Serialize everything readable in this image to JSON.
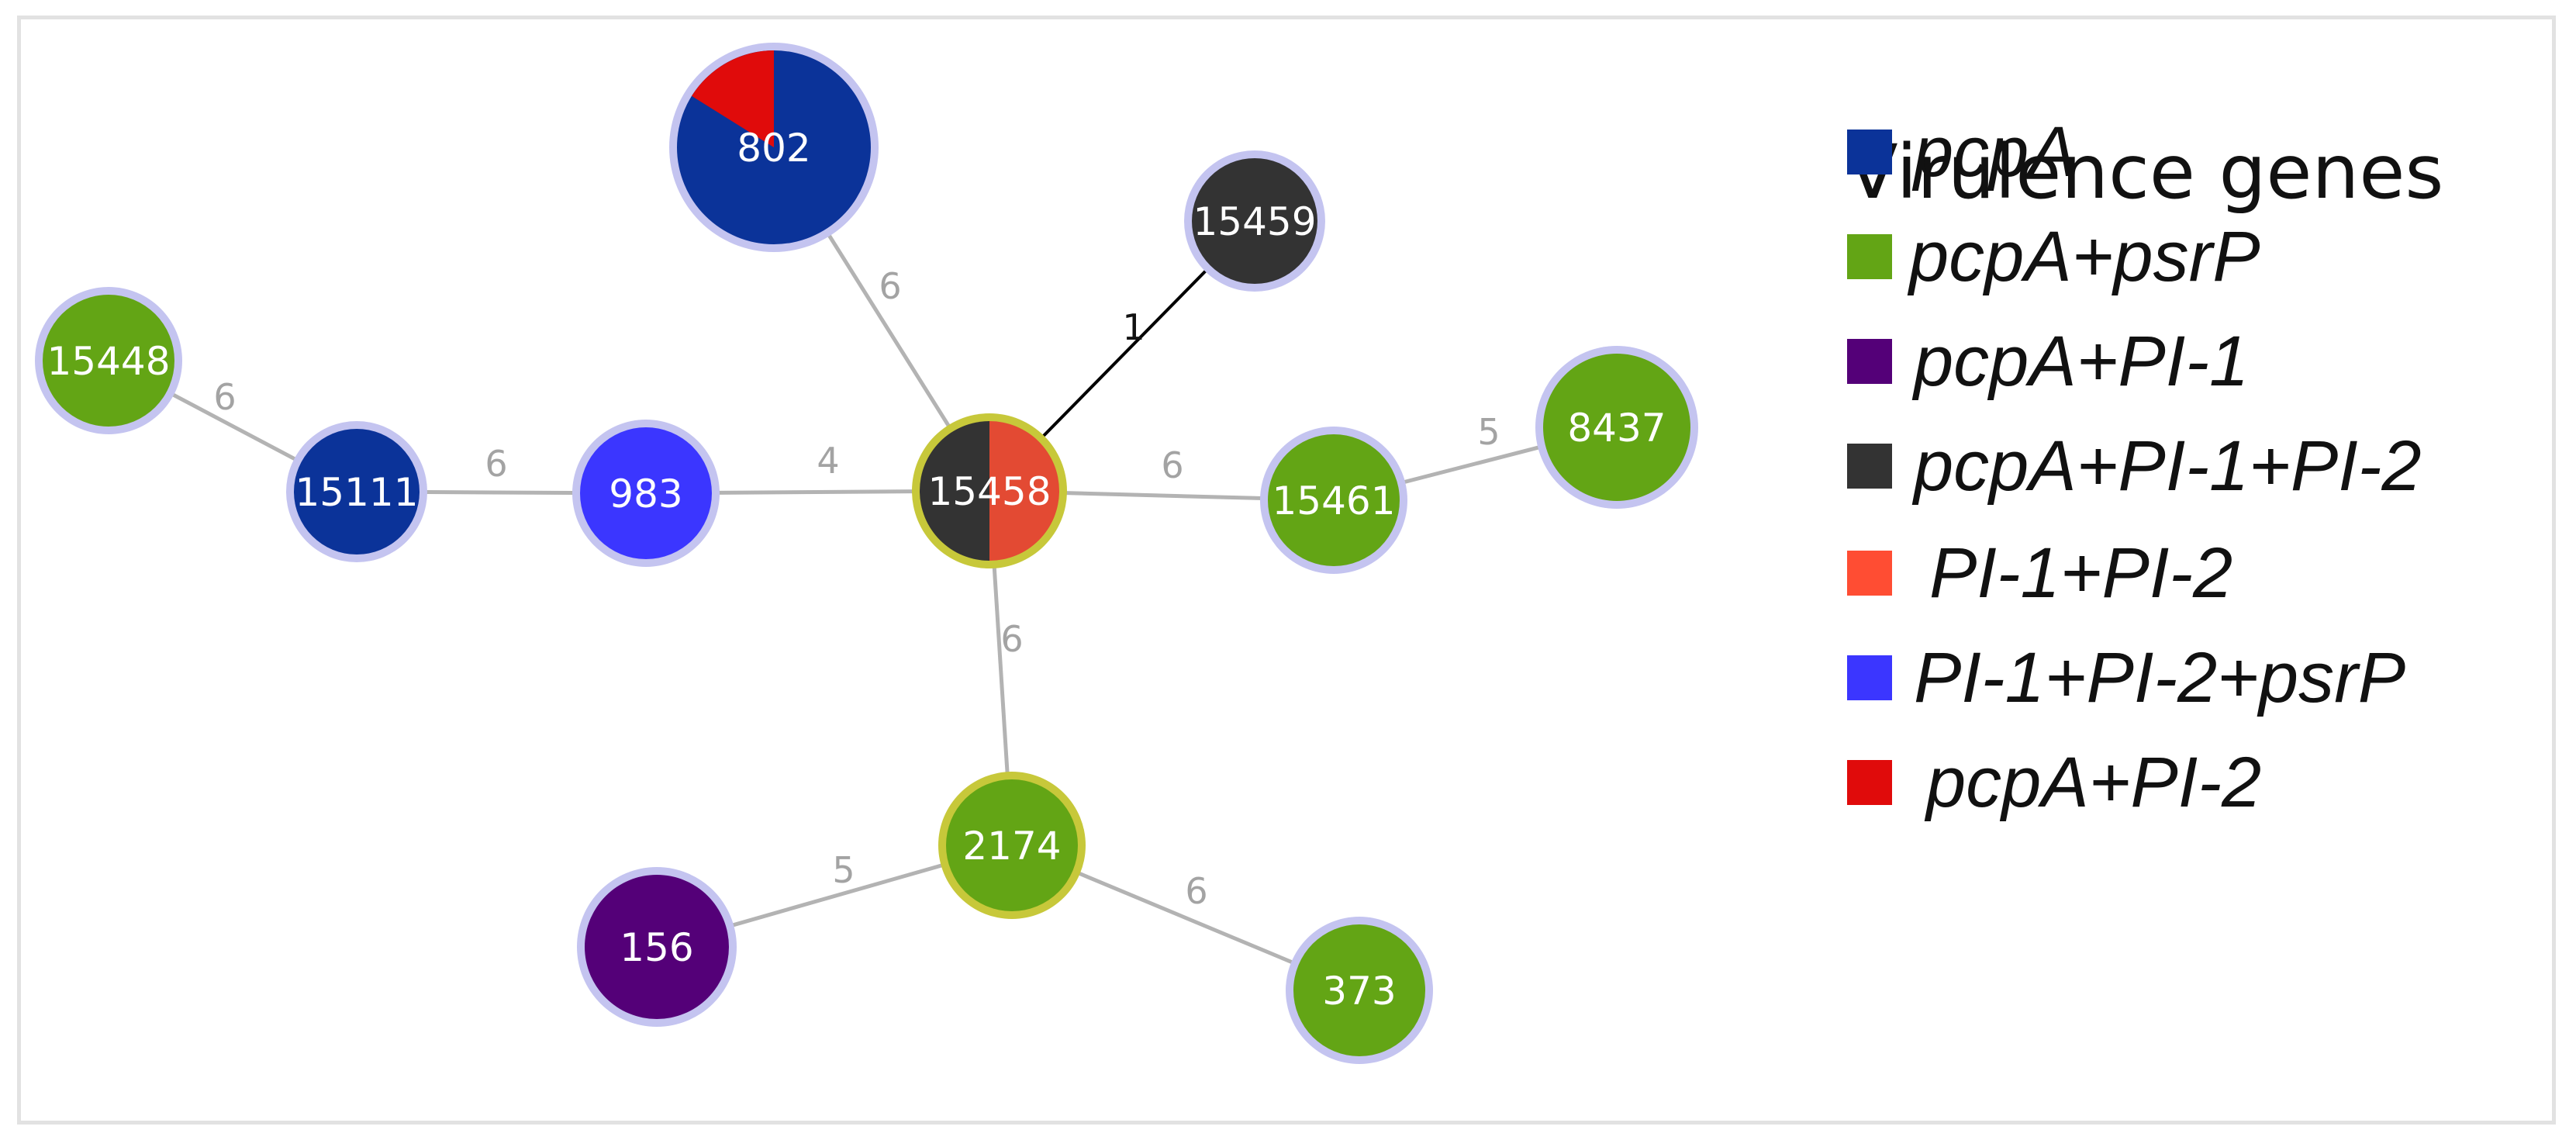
{
  "diagram": {
    "nodes": [
      {
        "id": "n15458",
        "label": "15458",
        "colors": [
          "#333333",
          "#e34a33"
        ],
        "ring": "#c7c83a",
        "kind": "split"
      },
      {
        "id": "n802",
        "label": "802",
        "colors": [
          "#0b3399",
          "#e00b0b"
        ],
        "ring": "#c4c4f0",
        "kind": "wedge"
      },
      {
        "id": "n15459",
        "label": "15459",
        "colors": [
          "#333333"
        ],
        "ring": "#c4c4f0"
      },
      {
        "id": "n15448",
        "label": "15448",
        "colors": [
          "#63a515"
        ],
        "ring": "#c4c4f0"
      },
      {
        "id": "n15111",
        "label": "15111",
        "colors": [
          "#0b3399"
        ],
        "ring": "#c4c4f0"
      },
      {
        "id": "n983",
        "label": "983",
        "colors": [
          "#3b36ff"
        ],
        "ring": "#c4c4f0"
      },
      {
        "id": "n15461",
        "label": "15461",
        "colors": [
          "#63a515"
        ],
        "ring": "#c4c4f0"
      },
      {
        "id": "n8437",
        "label": "8437",
        "colors": [
          "#63a515"
        ],
        "ring": "#c4c4f0"
      },
      {
        "id": "n2174",
        "label": "2174",
        "colors": [
          "#63a515"
        ],
        "ring": "#c7c83a"
      },
      {
        "id": "n156",
        "label": "156",
        "colors": [
          "#540078"
        ],
        "ring": "#c4c4f0"
      },
      {
        "id": "n373",
        "label": "373",
        "colors": [
          "#63a515"
        ],
        "ring": "#c4c4f0"
      }
    ],
    "edges": [
      {
        "id": "e1",
        "from": "n15458",
        "to": "n802",
        "label": "6",
        "dark": false
      },
      {
        "id": "e2",
        "from": "n15458",
        "to": "n15459",
        "label": "1",
        "dark": true
      },
      {
        "id": "e3",
        "from": "n15448",
        "to": "n15111",
        "label": "6",
        "dark": false
      },
      {
        "id": "e4",
        "from": "n15111",
        "to": "n983",
        "label": "6",
        "dark": false
      },
      {
        "id": "e5",
        "from": "n983",
        "to": "n15458",
        "label": "4",
        "dark": false
      },
      {
        "id": "e6",
        "from": "n15458",
        "to": "n15461",
        "label": "6",
        "dark": false
      },
      {
        "id": "e7",
        "from": "n15461",
        "to": "n8437",
        "label": "5",
        "dark": false
      },
      {
        "id": "e8",
        "from": "n15458",
        "to": "n2174",
        "label": "6",
        "dark": false
      },
      {
        "id": "e9",
        "from": "n2174",
        "to": "n156",
        "label": "5",
        "dark": false
      },
      {
        "id": "e10",
        "from": "n2174",
        "to": "n373",
        "label": "6",
        "dark": false
      }
    ]
  },
  "legend": {
    "title": "Virulence genes",
    "items": [
      {
        "label": "pcpA",
        "color": "#0b3399"
      },
      {
        "label": "pcpA+psrP",
        "color": "#63a515"
      },
      {
        "label": "pcpA+PI-1",
        "color": "#540078"
      },
      {
        "label": "pcpA+PI-1+PI-2",
        "color": "#333333"
      },
      {
        "label": "PI-1+PI-2",
        "color": "#ff4d33"
      },
      {
        "label": "PI-1+PI-2+psrP",
        "color": "#3b36ff"
      },
      {
        "label": "pcpA+PI-2",
        "color": "#e00b0b"
      }
    ]
  }
}
